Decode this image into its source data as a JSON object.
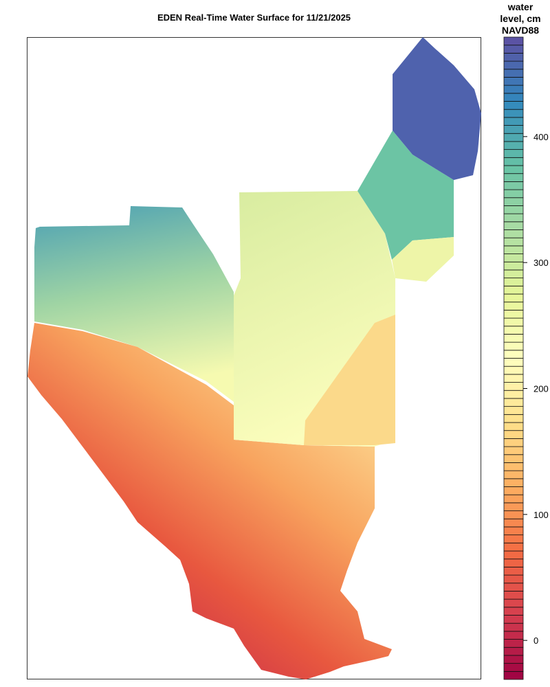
{
  "title": "EDEN Real-Time Water Surface for 11/21/2025",
  "legend": {
    "title_lines": [
      "water",
      "level, cm",
      "NAVD88"
    ],
    "ticks": [
      0,
      100,
      200,
      300,
      400
    ],
    "range": [
      -31,
      479
    ],
    "band_count": 80,
    "palette": [
      "#9e0142",
      "#d53e4f",
      "#f46d43",
      "#fdae61",
      "#fee08b",
      "#ffffbf",
      "#e6f598",
      "#abdda4",
      "#66c2a5",
      "#3288bd",
      "#5e4fa2"
    ]
  },
  "map_regions": [
    {
      "name": "northeast",
      "color": "#4f62ad"
    },
    {
      "name": "north-central-east",
      "color": "#6cc4a4"
    },
    {
      "name": "east-small",
      "color": "#eef5a8"
    },
    {
      "name": "central",
      "colors": [
        "#d8eca0",
        "#fbfdbc"
      ]
    },
    {
      "name": "east-wedge",
      "color": "#fbd98a"
    },
    {
      "name": "northwest",
      "colors": [
        "#4a9fb4",
        "#9fd4a4",
        "#f6fab0"
      ]
    },
    {
      "name": "south",
      "colors": [
        "#fde29a",
        "#f8a35e",
        "#e8583f",
        "#c01f4e"
      ]
    }
  ]
}
